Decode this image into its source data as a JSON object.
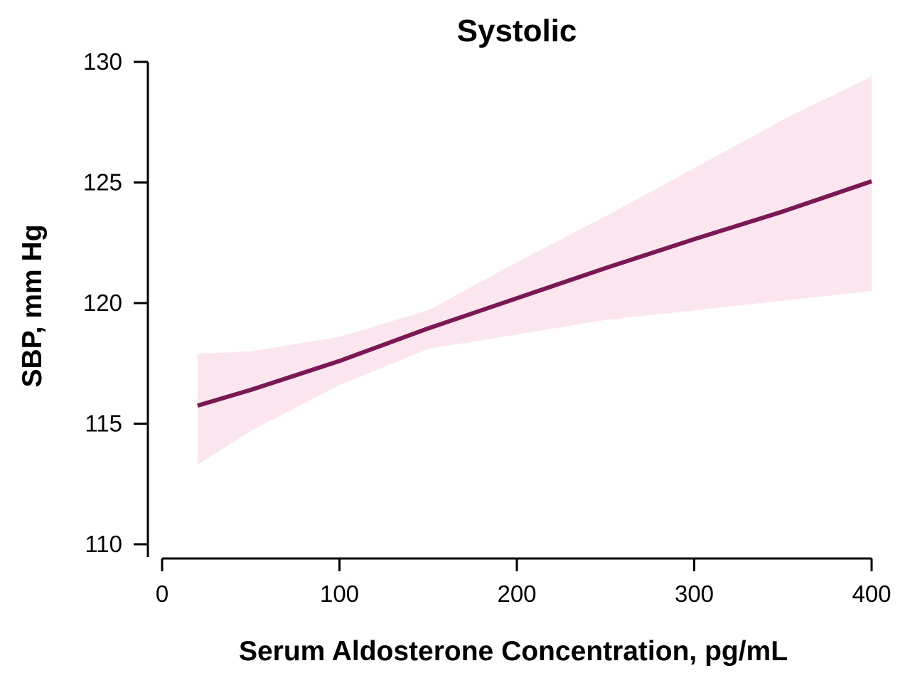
{
  "chart_data": {
    "type": "line",
    "title": "Systolic",
    "xlabel": "Serum Aldosterone Concentration, pg/mL",
    "ylabel": "SBP, mm Hg",
    "xlim": [
      0,
      400
    ],
    "ylim": [
      110,
      130
    ],
    "x_ticks": [
      0,
      100,
      200,
      300,
      400
    ],
    "y_ticks": [
      110,
      115,
      120,
      125,
      130
    ],
    "grid": false,
    "series": [
      {
        "x": [
          20,
          50,
          100,
          150,
          200,
          250,
          300,
          350,
          400
        ],
        "y": [
          115.75,
          116.4,
          117.6,
          118.95,
          120.2,
          121.45,
          122.65,
          123.8,
          125.05
        ],
        "ci_lower": [
          113.3,
          114.7,
          116.6,
          118.1,
          118.7,
          119.3,
          119.7,
          120.1,
          120.5
        ],
        "ci_upper": [
          117.9,
          118.0,
          118.6,
          119.7,
          121.7,
          123.6,
          125.6,
          127.6,
          129.4
        ]
      }
    ],
    "colors": {
      "line": "#7a1852",
      "band": "#fbe6f0"
    }
  }
}
